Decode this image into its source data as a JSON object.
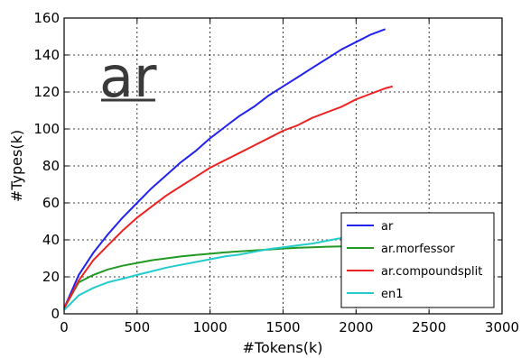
{
  "chart_data": {
    "type": "line",
    "title": "",
    "annotation": "ar",
    "xlabel": "#Tokens(k)",
    "ylabel": "#Types(k)",
    "xlim": [
      0,
      3000
    ],
    "ylim": [
      0,
      160
    ],
    "xticks": [
      0,
      500,
      1000,
      1500,
      2000,
      2500,
      3000
    ],
    "yticks": [
      0,
      20,
      40,
      60,
      80,
      100,
      120,
      140,
      160
    ],
    "grid": true,
    "legend_position": "lower-right",
    "series": [
      {
        "name": "ar",
        "color": "#2222ee",
        "x": [
          0,
          100,
          200,
          300,
          400,
          500,
          600,
          700,
          800,
          900,
          1000,
          1100,
          1200,
          1300,
          1400,
          1500,
          1600,
          1700,
          1800,
          1900,
          2000,
          2100,
          2200
        ],
        "y": [
          3,
          21,
          33,
          43,
          52,
          60,
          68,
          75,
          82,
          88,
          95,
          101,
          107,
          112,
          118,
          123,
          128,
          133,
          138,
          143,
          147,
          151,
          154
        ]
      },
      {
        "name": "ar.morfessor",
        "color": "#229922",
        "x": [
          0,
          100,
          200,
          300,
          400,
          500,
          600,
          700,
          800,
          900,
          1000,
          1100,
          1200,
          1300,
          1400,
          1500,
          1600,
          1700,
          1800,
          1900,
          2000,
          2100,
          2200
        ],
        "y": [
          3,
          17,
          21,
          24,
          26,
          27.5,
          29,
          30,
          31,
          31.8,
          32.5,
          33.2,
          33.8,
          34.3,
          34.8,
          35.3,
          35.7,
          36,
          36.3,
          36.5,
          36.7,
          36.8,
          37
        ]
      },
      {
        "name": "ar.compoundsplit",
        "color": "#ee2222",
        "x": [
          0,
          100,
          200,
          300,
          400,
          500,
          600,
          700,
          800,
          900,
          1000,
          1100,
          1200,
          1300,
          1400,
          1500,
          1600,
          1700,
          1800,
          1900,
          2000,
          2100,
          2200,
          2250
        ],
        "y": [
          3,
          18,
          29,
          37,
          45,
          52,
          58,
          64,
          69,
          74,
          79,
          83,
          87,
          91,
          95,
          99,
          102,
          106,
          109,
          112,
          116,
          119,
          122,
          123
        ]
      },
      {
        "name": "en1",
        "color": "#22cccc",
        "x": [
          0,
          100,
          200,
          300,
          400,
          500,
          600,
          700,
          800,
          900,
          1000,
          1100,
          1200,
          1300,
          1400,
          1500,
          1600,
          1700,
          1800,
          1900,
          2000
        ],
        "y": [
          2,
          10,
          14,
          17,
          19,
          21,
          23,
          25,
          26.5,
          28,
          29.5,
          31,
          32,
          33.5,
          35,
          36,
          37,
          38,
          39.5,
          41,
          42
        ]
      }
    ]
  }
}
